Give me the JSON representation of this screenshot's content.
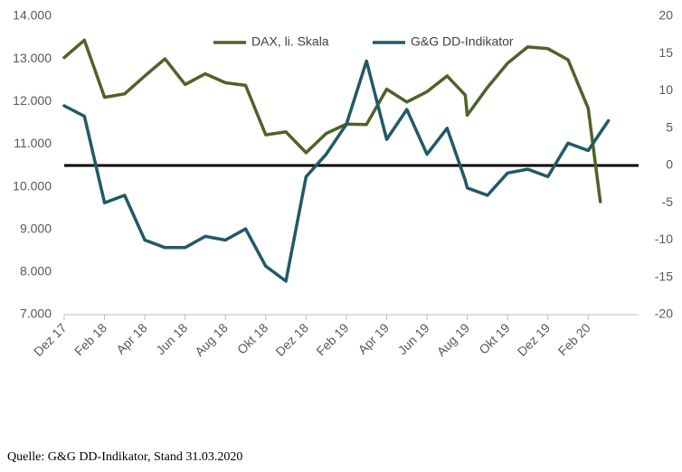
{
  "chart_data": {
    "type": "line",
    "x_labels": [
      "Dez 17",
      "Feb 18",
      "Apr 18",
      "Jun 18",
      "Aug 18",
      "Okt 18",
      "Dez 18",
      "Feb 19",
      "Apr 19",
      "Jun 19",
      "Aug 19",
      "Okt 19",
      "Dez 19",
      "Feb 20"
    ],
    "y_left": {
      "min": 7000,
      "max": 14000,
      "step": 1000,
      "tick_labels": [
        "7.000",
        "8.000",
        "9.000",
        "10.000",
        "11.000",
        "12.000",
        "13.000",
        "14.000"
      ]
    },
    "y_right": {
      "min": -20,
      "max": 20,
      "step": 5,
      "tick_labels": [
        "-20",
        "-15",
        "-10",
        "-5",
        "0",
        "5",
        "10",
        "15",
        "20"
      ]
    },
    "zero_line_right_value": 0,
    "x_range": [
      0,
      28.5
    ],
    "legend_position": "top-center",
    "series": [
      {
        "name": "DAX, li. Skala",
        "axis": "left",
        "color": "#4F6228",
        "points": [
          [
            0,
            13030
          ],
          [
            1,
            13440
          ],
          [
            2,
            12100
          ],
          [
            3,
            12180
          ],
          [
            4,
            12600
          ],
          [
            5,
            13000
          ],
          [
            6,
            12400
          ],
          [
            7,
            12650
          ],
          [
            8,
            12440
          ],
          [
            9,
            12380
          ],
          [
            10,
            11220
          ],
          [
            11,
            11290
          ],
          [
            12,
            10800
          ],
          [
            13,
            11250
          ],
          [
            14,
            11470
          ],
          [
            15,
            11460
          ],
          [
            16,
            12290
          ],
          [
            17,
            11990
          ],
          [
            18,
            12230
          ],
          [
            19,
            12600
          ],
          [
            19.9,
            12150
          ],
          [
            20,
            11680
          ],
          [
            21,
            12330
          ],
          [
            22,
            12900
          ],
          [
            23,
            13280
          ],
          [
            24,
            13240
          ],
          [
            25,
            12980
          ],
          [
            26,
            11840
          ],
          [
            26.6,
            9650
          ]
        ]
      },
      {
        "name": "G&G DD-Indikator",
        "axis": "right",
        "color": "#215967",
        "points": [
          [
            0,
            8.0
          ],
          [
            1,
            6.6
          ],
          [
            2,
            -5.0
          ],
          [
            3,
            -4.0
          ],
          [
            4,
            -10.0
          ],
          [
            5,
            -11.0
          ],
          [
            6,
            -11.0
          ],
          [
            7,
            -9.5
          ],
          [
            8,
            -10.0
          ],
          [
            9,
            -8.5
          ],
          [
            10,
            -13.5
          ],
          [
            11,
            -15.5
          ],
          [
            12,
            -1.5
          ],
          [
            13,
            1.5
          ],
          [
            14,
            5.5
          ],
          [
            15,
            14.0
          ],
          [
            16,
            3.5
          ],
          [
            17,
            7.5
          ],
          [
            18,
            1.5
          ],
          [
            19,
            5.0
          ],
          [
            19.9,
            -2.0
          ],
          [
            20,
            -3.0
          ],
          [
            21,
            -4.0
          ],
          [
            22,
            -1.0
          ],
          [
            23,
            -0.5
          ],
          [
            24,
            -1.5
          ],
          [
            25,
            3.0
          ],
          [
            26,
            2.0
          ],
          [
            27,
            6.0
          ]
        ]
      }
    ]
  },
  "source_note": "Quelle: G&G DD-Indikator, Stand 31.03.2020"
}
